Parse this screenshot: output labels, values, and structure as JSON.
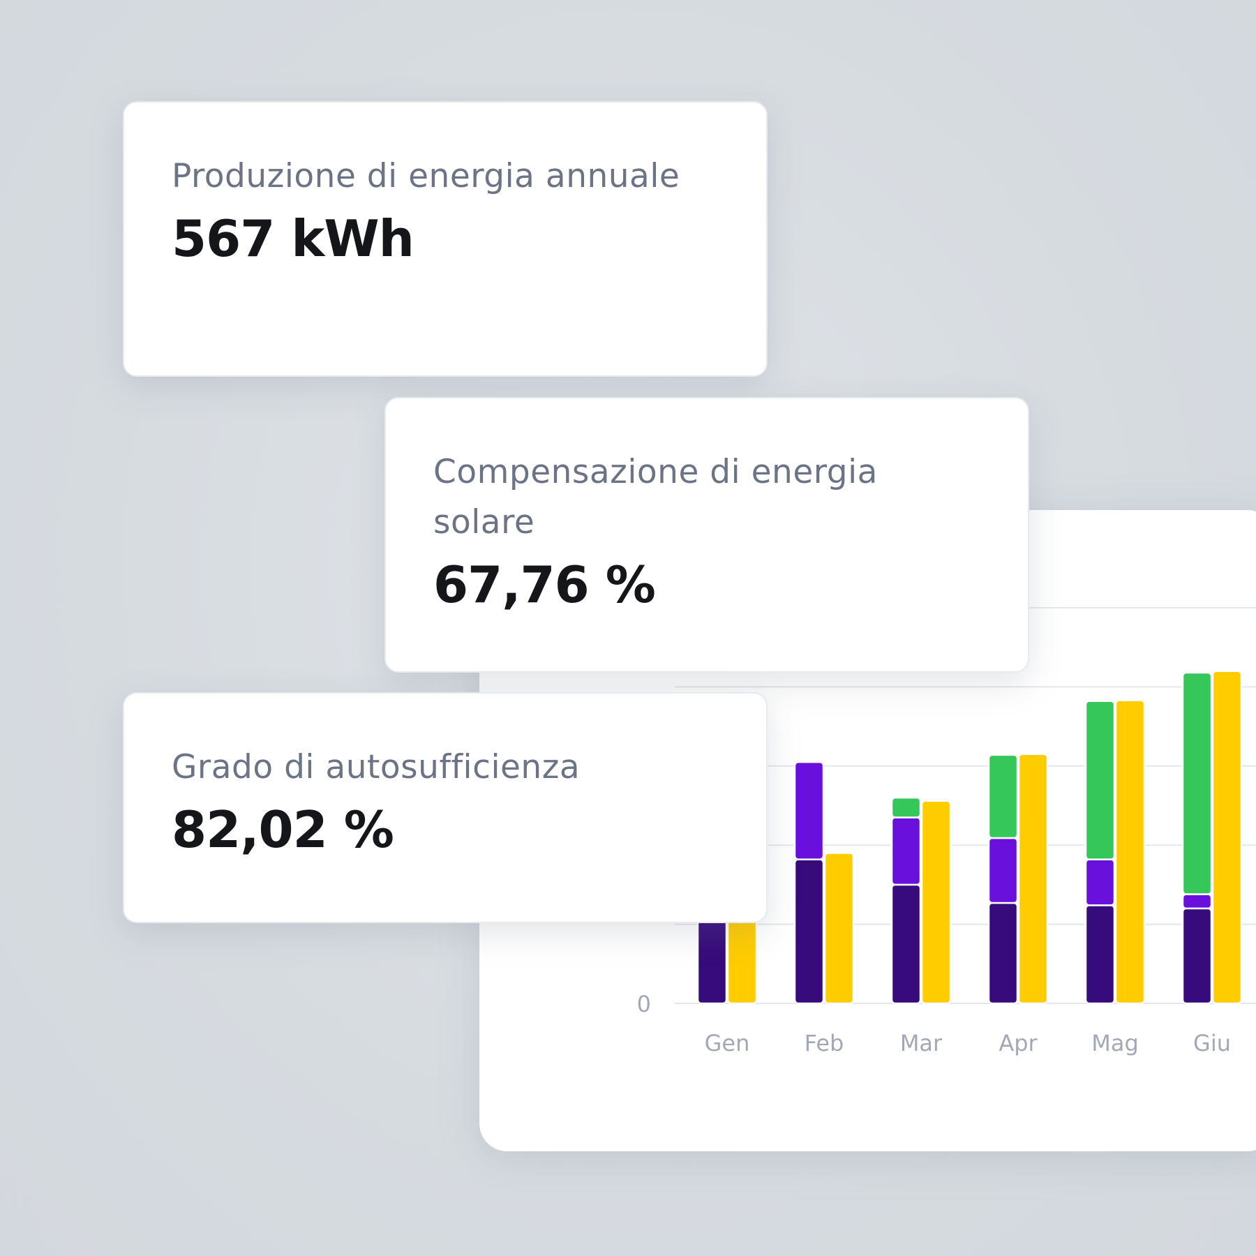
{
  "stats": [
    {
      "label": "Produzione di energia annuale",
      "value": "567 kWh"
    },
    {
      "label": "Compensazione di energia solare",
      "value": "67,76 %"
    },
    {
      "label": "Grado di autosufficienza",
      "value": "82,02 %"
    }
  ],
  "chart_data": {
    "type": "bar",
    "stacked": true,
    "categories": [
      "Gen",
      "Feb",
      "Mar",
      "Apr",
      "Mag",
      "Giu"
    ],
    "y_tick_labels": [
      "0"
    ],
    "grid": true,
    "ylim": [
      0,
      500
    ],
    "series": [
      {
        "stack": "a",
        "color": "#370b7b",
        "values": [
          120,
          182,
          150,
          127,
          124,
          120
        ]
      },
      {
        "stack": "a",
        "color": "#6910dc",
        "values": [
          0,
          123,
          85,
          82,
          58,
          18
        ]
      },
      {
        "stack": "a",
        "color": "#35c759",
        "values": [
          0,
          0,
          25,
          105,
          200,
          280
        ]
      },
      {
        "stack": "b",
        "color": "#ffcc00",
        "values": [
          120,
          190,
          256,
          315,
          383,
          420
        ]
      }
    ]
  }
}
